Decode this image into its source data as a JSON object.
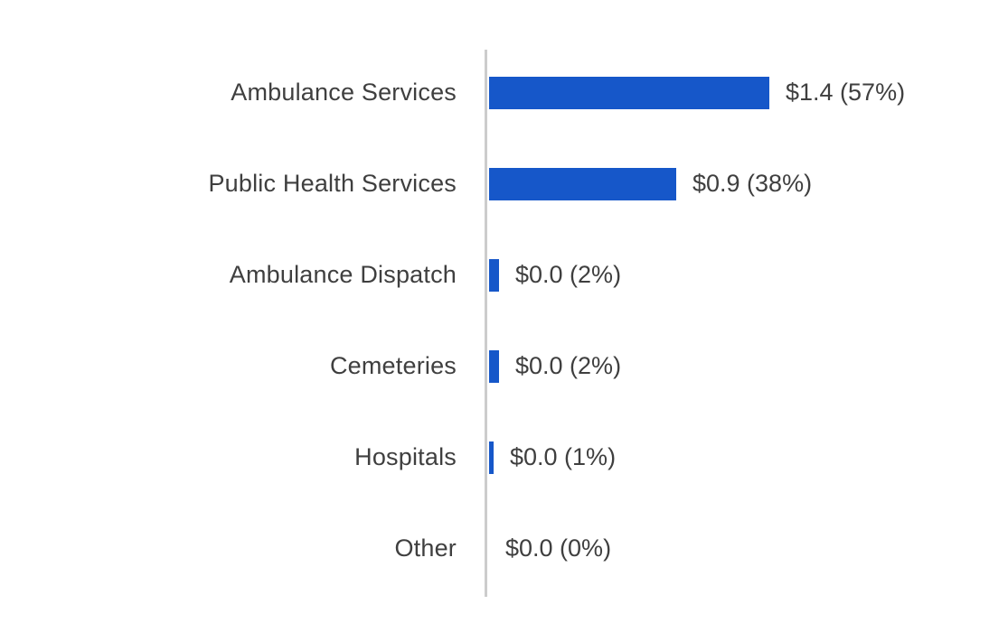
{
  "chart_data": {
    "type": "bar",
    "orientation": "horizontal",
    "title": "",
    "xlabel": "",
    "ylabel": "",
    "categories": [
      "Ambulance Services",
      "Public Health Services",
      "Ambulance Dispatch",
      "Cemeteries",
      "Hospitals",
      "Other"
    ],
    "values": [
      1.4,
      0.9,
      0.0,
      0.0,
      0.0,
      0.0
    ],
    "percents": [
      57,
      38,
      2,
      2,
      1,
      0
    ],
    "value_labels": [
      "$1.4 (57%)",
      "$0.9 (38%)",
      "$0.0 (2%)",
      "$0.0 (2%)",
      "$0.0 (1%)",
      "$0.0 (0%)"
    ],
    "bar_color": "#1657c9",
    "axis_color": "#cccccc",
    "text_color": "#3f3f3f",
    "grid": false,
    "legend": false,
    "xlim_percent": [
      0,
      57
    ]
  }
}
